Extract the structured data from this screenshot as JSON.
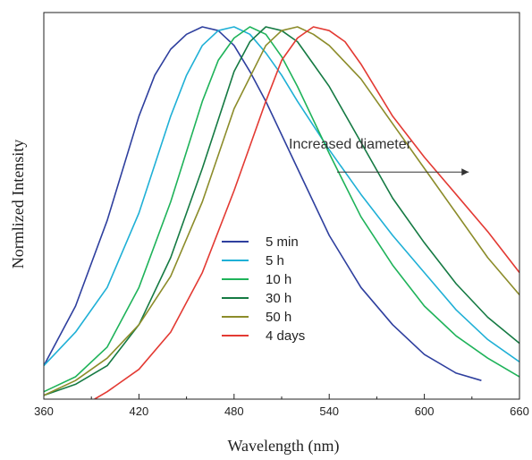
{
  "chart_data": {
    "type": "line",
    "xlabel": "Wavelength (nm)",
    "ylabel": "Normlized Intensity",
    "xlim": [
      360,
      660
    ],
    "ylim": [
      0,
      1.0
    ],
    "xticks": [
      "360",
      "420",
      "480",
      "540",
      "600",
      "660"
    ],
    "y_tick_labels_shown": false,
    "grid": false,
    "legend_position": "lower-center",
    "annotation": {
      "text": "Increased diameter",
      "arrow_from": [
        545,
        0.61
      ],
      "arrow_to": [
        628,
        0.61
      ]
    },
    "series": [
      {
        "name": "5 min",
        "color": "#2e3f9e",
        "x": [
          360,
          380,
          400,
          420,
          430,
          440,
          450,
          460,
          470,
          480,
          490,
          500,
          520,
          540,
          560,
          580,
          600,
          620,
          636
        ],
        "y": [
          0.09,
          0.25,
          0.48,
          0.76,
          0.87,
          0.94,
          0.98,
          1.0,
          0.99,
          0.95,
          0.88,
          0.8,
          0.62,
          0.44,
          0.3,
          0.2,
          0.12,
          0.07,
          0.05
        ]
      },
      {
        "name": "5 h",
        "color": "#1fb0d6",
        "x": [
          360,
          380,
          400,
          420,
          440,
          450,
          460,
          470,
          480,
          490,
          500,
          510,
          520,
          540,
          560,
          580,
          600,
          620,
          640,
          660
        ],
        "y": [
          0.09,
          0.18,
          0.3,
          0.5,
          0.76,
          0.87,
          0.95,
          0.99,
          1.0,
          0.98,
          0.93,
          0.87,
          0.8,
          0.67,
          0.55,
          0.44,
          0.34,
          0.24,
          0.16,
          0.1
        ]
      },
      {
        "name": "10 h",
        "color": "#1fb35a",
        "x": [
          360,
          380,
          400,
          420,
          440,
          460,
          470,
          480,
          490,
          500,
          510,
          520,
          540,
          560,
          580,
          600,
          620,
          640,
          660
        ],
        "y": [
          0.02,
          0.06,
          0.14,
          0.3,
          0.53,
          0.8,
          0.91,
          0.97,
          1.0,
          0.98,
          0.92,
          0.84,
          0.66,
          0.49,
          0.36,
          0.25,
          0.17,
          0.11,
          0.06
        ]
      },
      {
        "name": "30 h",
        "color": "#157a43",
        "x": [
          360,
          380,
          400,
          420,
          440,
          460,
          480,
          490,
          500,
          510,
          520,
          530,
          540,
          560,
          580,
          600,
          620,
          640,
          660
        ],
        "y": [
          0.01,
          0.04,
          0.09,
          0.2,
          0.38,
          0.62,
          0.88,
          0.96,
          1.0,
          0.99,
          0.96,
          0.9,
          0.84,
          0.69,
          0.54,
          0.42,
          0.31,
          0.22,
          0.15
        ]
      },
      {
        "name": "50 h",
        "color": "#8c8c2a",
        "x": [
          360,
          380,
          400,
          420,
          440,
          460,
          480,
          500,
          510,
          520,
          530,
          540,
          560,
          580,
          600,
          620,
          640,
          660
        ],
        "y": [
          0.01,
          0.05,
          0.11,
          0.2,
          0.33,
          0.53,
          0.78,
          0.95,
          0.99,
          1.0,
          0.98,
          0.95,
          0.86,
          0.74,
          0.62,
          0.5,
          0.38,
          0.28
        ]
      },
      {
        "name": "4 days",
        "color": "#e33a33",
        "x": [
          392,
          400,
          420,
          440,
          460,
          480,
          500,
          510,
          520,
          530,
          540,
          550,
          560,
          580,
          600,
          620,
          640,
          660
        ],
        "y": [
          0.0,
          0.02,
          0.08,
          0.18,
          0.34,
          0.56,
          0.8,
          0.91,
          0.97,
          1.0,
          0.99,
          0.96,
          0.9,
          0.76,
          0.65,
          0.55,
          0.45,
          0.34
        ]
      }
    ]
  }
}
